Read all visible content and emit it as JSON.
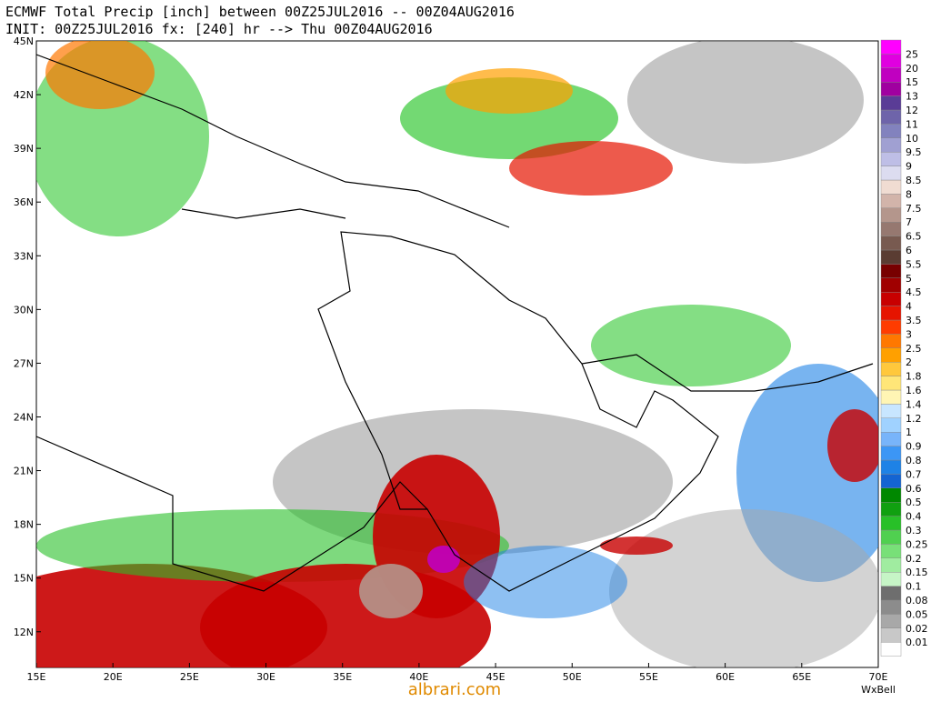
{
  "header": {
    "line1": "ECMWF Total Precip [inch] between 00Z25JUL2016 -- 00Z04AUG2016",
    "line2": "INIT: 00Z25JUL2016 fx: [240] hr --> Thu 00Z04AUG2016"
  },
  "map": {
    "lat_labels": [
      "45N",
      "42N",
      "39N",
      "36N",
      "33N",
      "30N",
      "27N",
      "24N",
      "21N",
      "18N",
      "15N",
      "12N"
    ],
    "lon_labels": [
      "15E",
      "20E",
      "25E",
      "30E",
      "35E",
      "40E",
      "45E",
      "50E",
      "55E",
      "60E",
      "65E",
      "70E"
    ]
  },
  "colorbar": {
    "levels": [
      0.01,
      0.02,
      0.05,
      0.08,
      0.1,
      0.15,
      0.2,
      0.25,
      0.3,
      0.4,
      0.5,
      0.6,
      0.7,
      0.8,
      0.9,
      1,
      1.2,
      1.4,
      1.6,
      1.8,
      2,
      2.5,
      3,
      3.5,
      4,
      4.5,
      5,
      5.5,
      6,
      6.5,
      7,
      7.5,
      8,
      8.5,
      9,
      9.5,
      10,
      11,
      12,
      13,
      15,
      20,
      25
    ],
    "colors": [
      "#ffffff",
      "#c8c8c8",
      "#a8a8a8",
      "#8c8c8c",
      "#6e6e6e",
      "#c6f5c6",
      "#a0eca0",
      "#78e078",
      "#50d050",
      "#28c028",
      "#10a010",
      "#008800",
      "#1464d2",
      "#1e82e6",
      "#3c96f5",
      "#78b4fa",
      "#a0d2ff",
      "#c8e6ff",
      "#fff5b4",
      "#ffe678",
      "#ffc83c",
      "#ffa000",
      "#ff7800",
      "#ff3c00",
      "#e61400",
      "#c80000",
      "#a00000",
      "#780000",
      "#5a3c32",
      "#785a50",
      "#967870",
      "#b4968c",
      "#d2b4aa",
      "#f0dcd2",
      "#dcdcf0",
      "#bebee6",
      "#a0a0d2",
      "#8282be",
      "#6e64aa",
      "#5a3c96",
      "#a000a0",
      "#c000c0",
      "#e000e0",
      "#ff00ff"
    ]
  },
  "footer": {
    "credit": "WxBell",
    "watermark": "albrari.com"
  }
}
